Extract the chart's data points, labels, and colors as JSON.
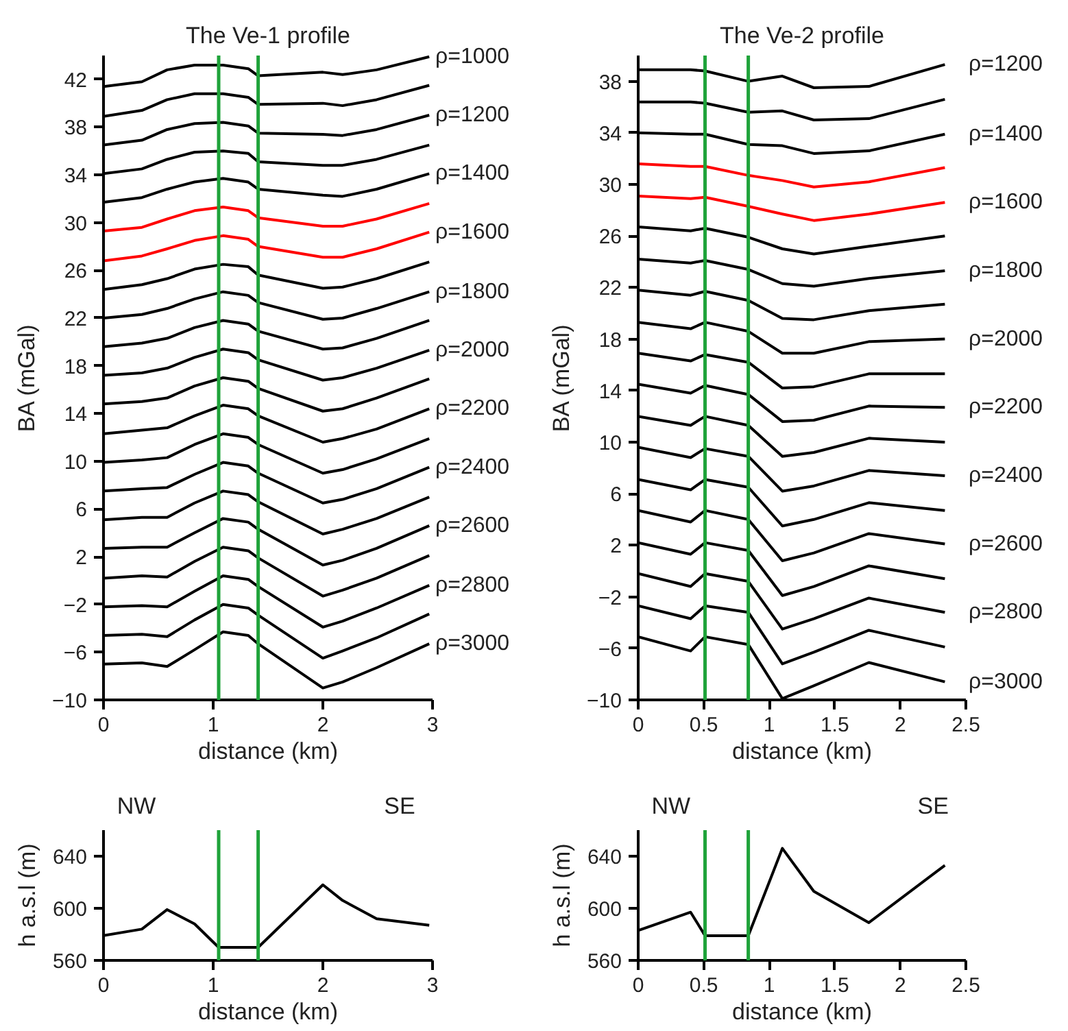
{
  "chart_data": [
    {
      "type": "line",
      "title": "The Ve-1 profile",
      "xlabel": "distance (km)",
      "ylabel": "BA (mGal)",
      "xlim": [
        0,
        3
      ],
      "xticks": [
        0,
        1,
        2,
        3
      ],
      "ylim": [
        -10,
        44
      ],
      "yticks": [
        -10,
        -6,
        -2,
        2,
        6,
        10,
        14,
        18,
        22,
        26,
        30,
        34,
        38,
        42
      ],
      "x": [
        0,
        0.35,
        0.58,
        0.83,
        1.09,
        1.32,
        1.41,
        2.0,
        2.18,
        2.49,
        2.97
      ],
      "ref_lines": [
        {
          "axis": "x",
          "value": 1.05,
          "color": "#1fa33a"
        },
        {
          "axis": "x",
          "value": 1.41,
          "color": "#1fa33a"
        }
      ],
      "series": [
        {
          "name": "ρ=1000",
          "color": "#000000",
          "values": [
            41.4,
            41.8,
            42.8,
            43.2,
            43.2,
            42.9,
            42.3,
            42.6,
            42.4,
            42.8,
            43.9
          ]
        },
        {
          "color": "#000000",
          "values": [
            38.9,
            39.4,
            40.3,
            40.8,
            40.8,
            40.5,
            39.9,
            40.0,
            39.8,
            40.3,
            41.5
          ]
        },
        {
          "name": "ρ=1200",
          "color": "#000000",
          "values": [
            36.5,
            36.9,
            37.8,
            38.3,
            38.4,
            38.1,
            37.5,
            37.4,
            37.3,
            37.8,
            39.0
          ]
        },
        {
          "color": "#000000",
          "values": [
            34.1,
            34.5,
            35.3,
            35.9,
            36.0,
            35.8,
            35.1,
            34.8,
            34.8,
            35.3,
            36.5
          ]
        },
        {
          "name": "ρ=1400",
          "color": "#000000",
          "values": [
            31.7,
            32.1,
            32.8,
            33.4,
            33.7,
            33.4,
            32.8,
            32.3,
            32.2,
            32.8,
            34.1
          ]
        },
        {
          "color": "#ff0000",
          "values": [
            29.3,
            29.6,
            30.3,
            31.0,
            31.3,
            31.0,
            30.4,
            29.7,
            29.7,
            30.3,
            31.6
          ]
        },
        {
          "name": "ρ=1600",
          "color": "#ff0000",
          "values": [
            26.8,
            27.2,
            27.8,
            28.5,
            28.9,
            28.6,
            28.0,
            27.1,
            27.1,
            27.8,
            29.2
          ]
        },
        {
          "color": "#000000",
          "values": [
            24.4,
            24.8,
            25.3,
            26.1,
            26.5,
            26.3,
            25.6,
            24.5,
            24.6,
            25.3,
            26.7
          ]
        },
        {
          "name": "ρ=1800",
          "color": "#000000",
          "values": [
            22.0,
            22.3,
            22.8,
            23.6,
            24.2,
            23.9,
            23.3,
            21.9,
            22.0,
            22.8,
            24.2
          ]
        },
        {
          "color": "#000000",
          "values": [
            19.6,
            19.9,
            20.3,
            21.2,
            21.8,
            21.5,
            20.9,
            19.4,
            19.5,
            20.3,
            21.8
          ]
        },
        {
          "name": "ρ=2000",
          "color": "#000000",
          "values": [
            17.2,
            17.4,
            17.8,
            18.7,
            19.4,
            19.1,
            18.5,
            16.8,
            17.0,
            17.8,
            19.3
          ]
        },
        {
          "color": "#000000",
          "values": [
            14.8,
            15.0,
            15.3,
            16.3,
            17.0,
            16.7,
            16.1,
            14.2,
            14.4,
            15.3,
            16.9
          ]
        },
        {
          "name": "ρ=2200",
          "color": "#000000",
          "values": [
            12.3,
            12.6,
            12.8,
            13.8,
            14.7,
            14.4,
            13.8,
            11.6,
            11.9,
            12.7,
            14.4
          ]
        },
        {
          "color": "#000000",
          "values": [
            9.9,
            10.1,
            10.3,
            11.4,
            12.3,
            12.0,
            11.4,
            9.0,
            9.3,
            10.2,
            11.9
          ]
        },
        {
          "name": "ρ=2400",
          "color": "#000000",
          "values": [
            7.5,
            7.7,
            7.8,
            8.9,
            9.9,
            9.6,
            9.0,
            6.5,
            6.8,
            7.7,
            9.5
          ]
        },
        {
          "color": "#000000",
          "values": [
            5.1,
            5.3,
            5.3,
            6.5,
            7.5,
            7.2,
            6.6,
            3.9,
            4.3,
            5.2,
            7.0
          ]
        },
        {
          "name": "ρ=2600",
          "color": "#000000",
          "values": [
            2.7,
            2.8,
            2.8,
            4.0,
            5.2,
            4.9,
            4.3,
            1.3,
            1.7,
            2.7,
            4.6
          ]
        },
        {
          "color": "#000000",
          "values": [
            0.2,
            0.4,
            0.3,
            1.6,
            2.8,
            2.5,
            1.9,
            -1.3,
            -0.8,
            0.2,
            2.1
          ]
        },
        {
          "name": "ρ=2800",
          "color": "#000000",
          "values": [
            -2.2,
            -2.1,
            -2.2,
            -0.9,
            0.4,
            0.1,
            -0.5,
            -3.9,
            -3.4,
            -2.3,
            -0.4
          ]
        },
        {
          "color": "#000000",
          "values": [
            -4.6,
            -4.5,
            -4.7,
            -3.3,
            -2.0,
            -2.3,
            -2.9,
            -6.5,
            -5.9,
            -4.8,
            -2.8
          ]
        },
        {
          "name": "ρ=3000",
          "color": "#000000",
          "values": [
            -7.0,
            -6.9,
            -7.2,
            -5.8,
            -4.3,
            -4.6,
            -5.3,
            -9.0,
            -8.5,
            -7.3,
            -5.3
          ]
        }
      ]
    },
    {
      "type": "line",
      "title": "The Ve-2 profile",
      "xlabel": "distance (km)",
      "ylabel": "BA (mGal)",
      "xlim": [
        0,
        2.5
      ],
      "xticks": [
        0,
        0.5,
        1,
        1.5,
        2,
        2.5
      ],
      "ylim": [
        -10,
        40
      ],
      "yticks": [
        -10,
        -6,
        -2,
        2,
        6,
        10,
        14,
        18,
        22,
        26,
        30,
        34,
        38
      ],
      "x": [
        0,
        0.4,
        0.51,
        0.84,
        1.1,
        1.34,
        1.76,
        2.34
      ],
      "ref_lines": [
        {
          "axis": "x",
          "value": 0.51,
          "color": "#1fa33a"
        },
        {
          "axis": "x",
          "value": 0.84,
          "color": "#1fa33a"
        }
      ],
      "series": [
        {
          "name": "ρ=1200",
          "color": "#000000",
          "values": [
            38.9,
            38.9,
            38.8,
            38.0,
            38.4,
            37.5,
            37.6,
            39.3
          ]
        },
        {
          "color": "#000000",
          "values": [
            36.4,
            36.4,
            36.3,
            35.6,
            35.7,
            35.0,
            35.1,
            36.6
          ]
        },
        {
          "name": "ρ=1400",
          "color": "#000000",
          "values": [
            34.0,
            33.9,
            33.9,
            33.1,
            33.0,
            32.4,
            32.6,
            33.9
          ]
        },
        {
          "color": "#ff0000",
          "values": [
            31.6,
            31.4,
            31.4,
            30.7,
            30.3,
            29.8,
            30.2,
            31.3
          ]
        },
        {
          "name": "ρ=1600",
          "color": "#ff0000",
          "values": [
            29.1,
            28.9,
            29.0,
            28.3,
            27.7,
            27.2,
            27.7,
            28.6
          ]
        },
        {
          "color": "#000000",
          "values": [
            26.7,
            26.4,
            26.6,
            25.9,
            25.0,
            24.6,
            25.2,
            26.0
          ]
        },
        {
          "name": "ρ=1800",
          "color": "#000000",
          "values": [
            24.2,
            23.9,
            24.1,
            23.4,
            22.3,
            22.1,
            22.7,
            23.3
          ]
        },
        {
          "color": "#000000",
          "values": [
            21.8,
            21.4,
            21.7,
            21.0,
            19.6,
            19.5,
            20.2,
            20.7
          ]
        },
        {
          "name": "ρ=2000",
          "color": "#000000",
          "values": [
            19.3,
            18.8,
            19.3,
            18.6,
            16.9,
            16.9,
            17.8,
            18.0
          ]
        },
        {
          "color": "#000000",
          "values": [
            16.9,
            16.3,
            16.8,
            16.2,
            14.2,
            14.3,
            15.3,
            15.3
          ]
        },
        {
          "name": "ρ=2200",
          "color": "#000000",
          "values": [
            14.5,
            13.8,
            14.4,
            13.7,
            11.6,
            11.7,
            12.8,
            12.7
          ]
        },
        {
          "color": "#000000",
          "values": [
            12.0,
            11.3,
            12.0,
            11.3,
            8.9,
            9.2,
            10.3,
            10.0
          ]
        },
        {
          "name": "ρ=2400",
          "color": "#000000",
          "values": [
            9.6,
            8.8,
            9.5,
            8.9,
            6.2,
            6.6,
            7.8,
            7.4
          ]
        },
        {
          "color": "#000000",
          "values": [
            7.1,
            6.3,
            7.1,
            6.5,
            3.5,
            4.0,
            5.3,
            4.7
          ]
        },
        {
          "name": "ρ=2600",
          "color": "#000000",
          "values": [
            4.7,
            3.8,
            4.7,
            4.0,
            0.8,
            1.4,
            2.9,
            2.1
          ]
        },
        {
          "color": "#000000",
          "values": [
            2.2,
            1.3,
            2.2,
            1.6,
            -1.9,
            -1.2,
            0.4,
            -0.6
          ]
        },
        {
          "name": "ρ=2800",
          "color": "#000000",
          "values": [
            -0.2,
            -1.2,
            -0.2,
            -0.8,
            -4.5,
            -3.7,
            -2.1,
            -3.2
          ]
        },
        {
          "color": "#000000",
          "values": [
            -2.7,
            -3.7,
            -2.7,
            -3.2,
            -7.2,
            -6.3,
            -4.6,
            -5.9
          ]
        },
        {
          "name": "ρ=3000",
          "color": "#000000",
          "values": [
            -5.1,
            -6.2,
            -5.1,
            -5.7,
            -9.9,
            -8.9,
            -7.1,
            -8.6
          ]
        }
      ]
    },
    {
      "type": "line",
      "xlabel": "distance (km)",
      "ylabel": "h a.s.l (m)",
      "xlim": [
        0,
        3
      ],
      "xticks": [
        0,
        1,
        2,
        3
      ],
      "ylim": [
        560,
        660
      ],
      "yticks": [
        560,
        600,
        640
      ],
      "annotations": [
        "NW",
        "SE"
      ],
      "x": [
        0,
        0.35,
        0.58,
        0.83,
        1.05,
        1.41,
        2.0,
        2.18,
        2.49,
        2.97
      ],
      "ref_lines": [
        {
          "axis": "x",
          "value": 1.05,
          "color": "#1fa33a"
        },
        {
          "axis": "x",
          "value": 1.41,
          "color": "#1fa33a"
        }
      ],
      "series": [
        {
          "color": "#000000",
          "values": [
            579,
            584,
            599,
            588,
            570,
            570,
            618,
            606,
            592,
            587
          ]
        }
      ]
    },
    {
      "type": "line",
      "xlabel": "distance (km)",
      "ylabel": "h a.s.l (m)",
      "xlim": [
        0,
        2.5
      ],
      "xticks": [
        0,
        0.5,
        1,
        1.5,
        2,
        2.5
      ],
      "ylim": [
        560,
        660
      ],
      "yticks": [
        560,
        600,
        640
      ],
      "annotations": [
        "NW",
        "SE"
      ],
      "x": [
        0,
        0.4,
        0.51,
        0.84,
        1.1,
        1.34,
        1.76,
        2.34
      ],
      "ref_lines": [
        {
          "axis": "x",
          "value": 0.51,
          "color": "#1fa33a"
        },
        {
          "axis": "x",
          "value": 0.84,
          "color": "#1fa33a"
        }
      ],
      "series": [
        {
          "color": "#000000",
          "values": [
            583,
            597,
            579,
            579,
            646,
            613,
            589,
            633
          ]
        }
      ]
    }
  ]
}
